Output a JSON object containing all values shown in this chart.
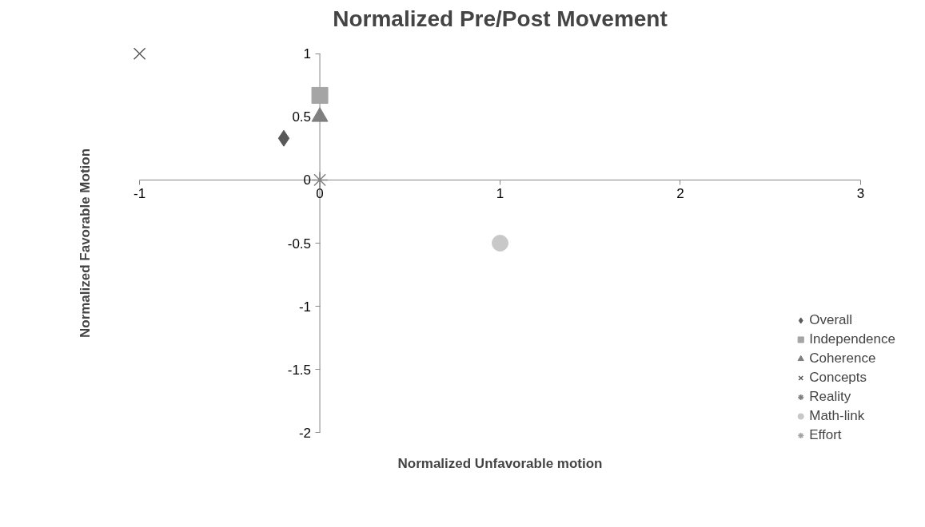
{
  "chart_data": {
    "type": "scatter",
    "title": "Normalized Pre/Post Movement",
    "xlabel": "Normalized Unfavorable motion",
    "ylabel": "Normalized Favorable Motion",
    "xlim": [
      -1,
      3
    ],
    "ylim": [
      -2,
      1
    ],
    "xticks": [
      -1,
      0,
      1,
      2,
      3
    ],
    "yticks": [
      -2,
      -1.5,
      -1,
      -0.5,
      0,
      0.5,
      1
    ],
    "grid": false,
    "legend": "bottom right",
    "series": [
      {
        "name": "Overall",
        "color": "#595959",
        "marker": "diamond",
        "x": [
          -0.2
        ],
        "values": [
          0.33
        ]
      },
      {
        "name": "Independence",
        "color": "#a5a5a5",
        "marker": "square",
        "x": [
          0
        ],
        "values": [
          0.67
        ]
      },
      {
        "name": "Coherence",
        "color": "#7f7f7f",
        "marker": "triangle",
        "x": [
          0
        ],
        "values": [
          0.5
        ]
      },
      {
        "name": "Concepts",
        "color": "#595959",
        "marker": "x",
        "x": [
          -1
        ],
        "values": [
          1
        ]
      },
      {
        "name": "Reality",
        "color": "#7f7f7f",
        "marker": "cross",
        "x": [
          0
        ],
        "values": [
          0
        ]
      },
      {
        "name": "Math-link",
        "color": "#c8c8c8",
        "marker": "circle",
        "x": [
          1
        ],
        "values": [
          -0.5
        ]
      },
      {
        "name": "Effort",
        "color": "#a5a5a5",
        "marker": "cross",
        "x": [
          null
        ],
        "values": [
          null
        ]
      }
    ]
  }
}
